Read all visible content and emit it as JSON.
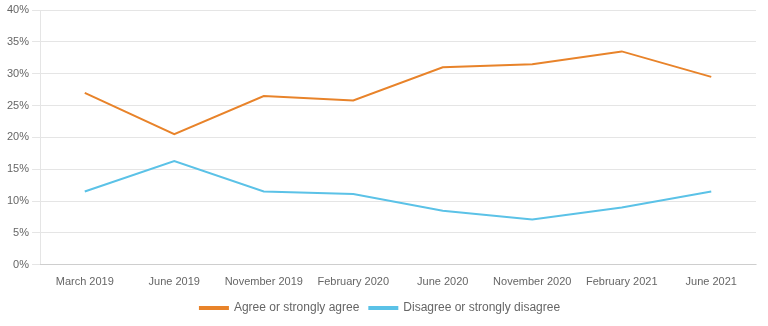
{
  "chart_data": {
    "type": "line",
    "categories": [
      "March 2019",
      "June 2019",
      "November 2019",
      "February 2020",
      "June 2020",
      "November 2020",
      "February 2021",
      "June 2021"
    ],
    "series": [
      {
        "name": "Agree or strongly agree",
        "color": "#E8832A",
        "values": [
          0.27,
          0.205,
          0.265,
          0.258,
          0.31,
          0.315,
          0.335,
          0.295
        ]
      },
      {
        "name": "Disagree or strongly disagree",
        "color": "#5BC2E7",
        "values": [
          0.115,
          0.163,
          0.115,
          0.111,
          0.085,
          0.071,
          0.09,
          0.115
        ]
      }
    ],
    "ylim": [
      0,
      0.4
    ],
    "yticks": [
      {
        "value": 0,
        "label": "0%"
      },
      {
        "value": 0.05,
        "label": "5%"
      },
      {
        "value": 0.1,
        "label": "10%"
      },
      {
        "value": 0.15,
        "label": "15%"
      },
      {
        "value": 0.2,
        "label": "20%"
      },
      {
        "value": 0.25,
        "label": "25%"
      },
      {
        "value": 0.3,
        "label": "30%"
      },
      {
        "value": 0.35,
        "label": "35%"
      },
      {
        "value": 0.4,
        "label": "40%"
      }
    ],
    "grid": true,
    "legend": "bottom"
  }
}
